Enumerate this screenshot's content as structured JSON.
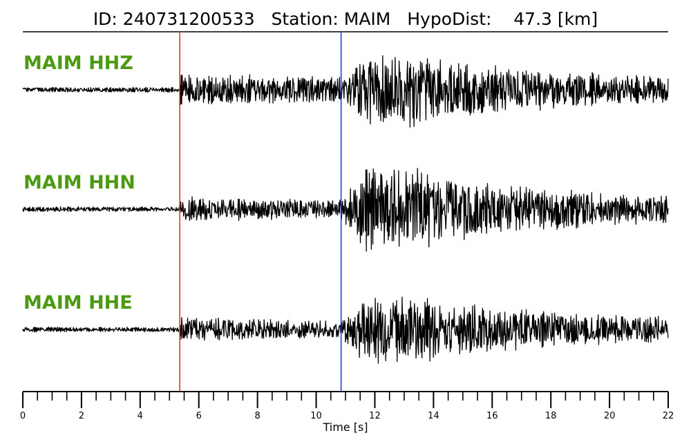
{
  "chart_data": {
    "type": "line",
    "title": "ID: 240731200533   Station: MAIM   HypoDist:    47.3 [km]",
    "xlabel": "Time [s]",
    "ylabel": "",
    "xlim": [
      0,
      22
    ],
    "x_tick_labels": [
      "0",
      "2",
      "4",
      "6",
      "8",
      "10",
      "12",
      "14",
      "16",
      "18",
      "20",
      "22"
    ],
    "major_tick_step": 2,
    "minor_tick_step": 0.5,
    "grid": false,
    "picks": [
      {
        "phase": "P",
        "time": 5.35,
        "color": "#e0261a"
      },
      {
        "phase": "S",
        "time": 10.85,
        "color": "#1530e6"
      }
    ],
    "series": [
      {
        "name": "MAIM HHZ",
        "color": "#000000"
      },
      {
        "name": "MAIM HHN",
        "color": "#000000"
      },
      {
        "name": "MAIM HHE",
        "color": "#000000"
      }
    ],
    "label_color": "#4c9a12"
  }
}
